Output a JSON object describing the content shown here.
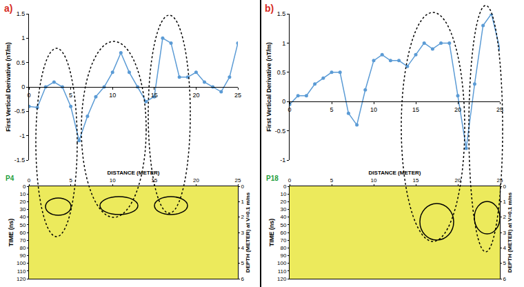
{
  "chart_data": [
    {
      "type": "line",
      "panel": "a)",
      "ylabel": "First Vertical Derivative (nT/m)",
      "x": [
        0,
        1,
        2,
        3,
        4,
        5,
        6,
        7,
        8,
        9,
        10,
        11,
        12,
        13,
        14,
        15,
        16,
        17,
        18,
        19,
        20,
        21,
        22,
        23,
        24,
        25
      ],
      "values": [
        -0.4,
        -0.42,
        0.0,
        0.1,
        0.0,
        -0.4,
        -1.1,
        -0.6,
        -0.2,
        0.0,
        0.3,
        0.7,
        0.3,
        0.0,
        -0.3,
        -0.2,
        1.0,
        0.9,
        0.2,
        0.2,
        0.3,
        0.1,
        0.0,
        -0.1,
        0.2,
        0.9
      ],
      "color": "#5b9bd5",
      "marker": "circle",
      "line_style": "solid",
      "grid": false,
      "xlim": [
        0,
        25
      ],
      "xticks": [
        0,
        5,
        10,
        15,
        20,
        25
      ],
      "ylim": [
        -1.5,
        1.5
      ],
      "yticks": [
        -1.5,
        -1,
        -0.5,
        0,
        0.5,
        1,
        1.5
      ]
    },
    {
      "type": "radargram",
      "title": "P4",
      "color": "#1f9e3c",
      "xlabel": "DISTANCE (METER)",
      "ylabel": "TIME (ns)",
      "y2label": "DEPTH (METER) at V=0.1 m/ns",
      "xlim": [
        0,
        25
      ],
      "xticks": [
        0,
        5,
        10,
        15,
        20,
        25
      ],
      "ylim": [
        120,
        0
      ],
      "yticks": [
        0,
        10,
        20,
        30,
        40,
        50,
        60,
        70,
        80,
        90,
        100,
        110,
        120
      ],
      "y2lim": [
        6,
        0
      ],
      "y2ticks": [
        0,
        1,
        2,
        3,
        4,
        5,
        6
      ]
    },
    {
      "type": "line",
      "panel": "b)",
      "ylabel": "First Vertical Derivative (nT/m)",
      "x": [
        0,
        1,
        2,
        3,
        4,
        5,
        6,
        7,
        8,
        9,
        10,
        11,
        12,
        13,
        14,
        15,
        16,
        17,
        18,
        19,
        20,
        21,
        22,
        23,
        24,
        25
      ],
      "values": [
        -0.05,
        0.1,
        0.1,
        0.3,
        0.4,
        0.5,
        0.5,
        -0.2,
        -0.4,
        0.2,
        0.7,
        0.8,
        0.7,
        0.7,
        0.6,
        0.8,
        1.0,
        0.9,
        1.0,
        1.0,
        0.1,
        -0.8,
        0.3,
        1.3,
        1.5,
        0.9
      ],
      "color": "#5b9bd5",
      "marker": "circle",
      "line_style": "solid",
      "grid": false,
      "xlim": [
        0,
        25
      ],
      "xticks": [
        0,
        5,
        10,
        15,
        20,
        25
      ],
      "ylim": [
        -1,
        1.5
      ],
      "yticks": [
        -1,
        -0.5,
        0,
        0.5,
        1,
        1.5
      ]
    },
    {
      "type": "radargram",
      "title": "P18",
      "color": "#1f9e3c",
      "xlabel": "DISTANCE (METER)",
      "ylabel": "TIME (ns)",
      "y2label": "DEPTH (METER) at V=0.1 m/ns",
      "xlim": [
        0,
        25
      ],
      "xticks": [
        0,
        5,
        10,
        15,
        20,
        25
      ],
      "ylim": [
        120,
        0
      ],
      "yticks": [
        0,
        10,
        20,
        30,
        40,
        50,
        60,
        70,
        80,
        90,
        100,
        110,
        120
      ],
      "y2lim": [
        6,
        0
      ],
      "y2ticks": [
        0,
        1,
        2,
        3,
        4,
        5,
        6
      ]
    }
  ]
}
